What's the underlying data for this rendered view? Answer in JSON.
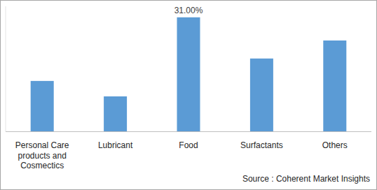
{
  "chart_data": {
    "type": "bar",
    "categories": [
      "Personal Care products and Cosmectics",
      "Lubricant",
      "Food",
      "Surfactants",
      "Others"
    ],
    "values": [
      13.7,
      9.5,
      31,
      19.8,
      24.7
    ],
    "value_labels": [
      null,
      null,
      "31.00%",
      null,
      null
    ],
    "color": "#5b9bd5",
    "ylim": [
      0,
      34
    ],
    "grid": false,
    "tick_labels": "x",
    "source": "Source : Coherent Market Insights"
  }
}
